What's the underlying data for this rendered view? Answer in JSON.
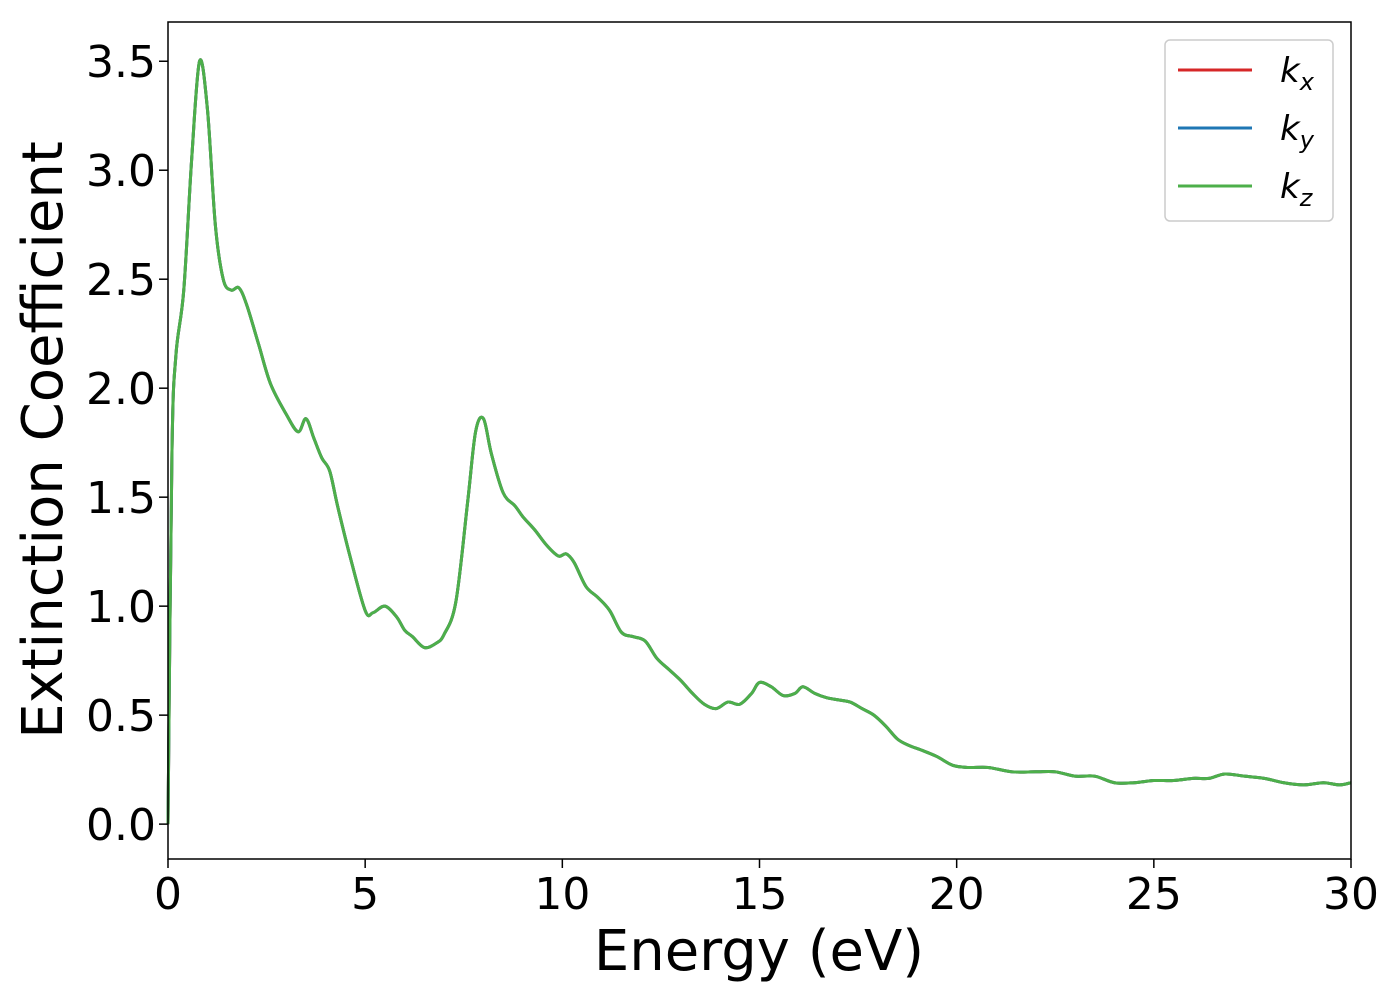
{
  "chart_data": {
    "type": "line",
    "xlabel": "Energy (eV)",
    "ylabel": "Extinction Coefficient",
    "xlim": [
      0,
      30
    ],
    "ylim": [
      -0.16,
      3.68
    ],
    "xticks": [
      0,
      5,
      10,
      15,
      20,
      25,
      30
    ],
    "xtick_labels": [
      "0",
      "5",
      "10",
      "15",
      "20",
      "25",
      "30"
    ],
    "yticks": [
      0.0,
      0.5,
      1.0,
      1.5,
      2.0,
      2.5,
      3.0,
      3.5
    ],
    "ytick_labels": [
      "0.0",
      "0.5",
      "1.0",
      "1.5",
      "2.0",
      "2.5",
      "3.0",
      "3.5"
    ],
    "grid": false,
    "legend_position": "top-right",
    "x": [
      0.0,
      0.1,
      0.2,
      0.4,
      0.6,
      0.8,
      1.0,
      1.2,
      1.4,
      1.6,
      1.8,
      2.0,
      2.3,
      2.6,
      3.0,
      3.3,
      3.5,
      3.7,
      3.9,
      4.1,
      4.3,
      4.6,
      5.0,
      5.2,
      5.5,
      5.8,
      6.0,
      6.2,
      6.5,
      6.8,
      7.0,
      7.3,
      7.6,
      7.8,
      8.0,
      8.2,
      8.5,
      8.8,
      9.0,
      9.3,
      9.6,
      9.9,
      10.1,
      10.3,
      10.6,
      10.9,
      11.2,
      11.5,
      11.8,
      12.1,
      12.4,
      12.7,
      13.0,
      13.3,
      13.6,
      13.9,
      14.2,
      14.5,
      14.8,
      15.0,
      15.3,
      15.6,
      15.9,
      16.1,
      16.4,
      16.7,
      17.0,
      17.3,
      17.6,
      17.9,
      18.2,
      18.5,
      18.8,
      19.1,
      19.5,
      19.9,
      20.3,
      20.8,
      21.4,
      22.0,
      22.5,
      23.0,
      23.5,
      24.0,
      24.5,
      25.0,
      25.5,
      26.0,
      26.4,
      26.8,
      27.3,
      27.8,
      28.3,
      28.8,
      29.3,
      29.7,
      30.0
    ],
    "series": [
      {
        "name": "k_x",
        "label_main": "k",
        "label_sub": "x",
        "color": "#d62728"
      },
      {
        "name": "k_y",
        "label_main": "k",
        "label_sub": "y",
        "color": "#1f77b4"
      },
      {
        "name": "k_z",
        "label_main": "k",
        "label_sub": "z",
        "color": "#4daf4a"
      }
    ],
    "values": [
      0.0,
      1.7,
      2.15,
      2.45,
      3.05,
      3.5,
      3.28,
      2.75,
      2.5,
      2.45,
      2.46,
      2.38,
      2.2,
      2.02,
      1.88,
      1.8,
      1.86,
      1.77,
      1.68,
      1.62,
      1.46,
      1.24,
      0.98,
      0.97,
      1.0,
      0.95,
      0.89,
      0.86,
      0.81,
      0.83,
      0.87,
      1.02,
      1.48,
      1.8,
      1.86,
      1.7,
      1.52,
      1.46,
      1.41,
      1.35,
      1.28,
      1.23,
      1.24,
      1.2,
      1.09,
      1.04,
      0.98,
      0.88,
      0.86,
      0.84,
      0.76,
      0.71,
      0.66,
      0.6,
      0.55,
      0.53,
      0.56,
      0.55,
      0.6,
      0.65,
      0.63,
      0.59,
      0.6,
      0.63,
      0.6,
      0.58,
      0.57,
      0.56,
      0.53,
      0.5,
      0.45,
      0.39,
      0.36,
      0.34,
      0.31,
      0.27,
      0.26,
      0.26,
      0.24,
      0.24,
      0.24,
      0.22,
      0.22,
      0.19,
      0.19,
      0.2,
      0.2,
      0.21,
      0.21,
      0.23,
      0.22,
      0.21,
      0.19,
      0.18,
      0.19,
      0.18,
      0.19
    ]
  }
}
